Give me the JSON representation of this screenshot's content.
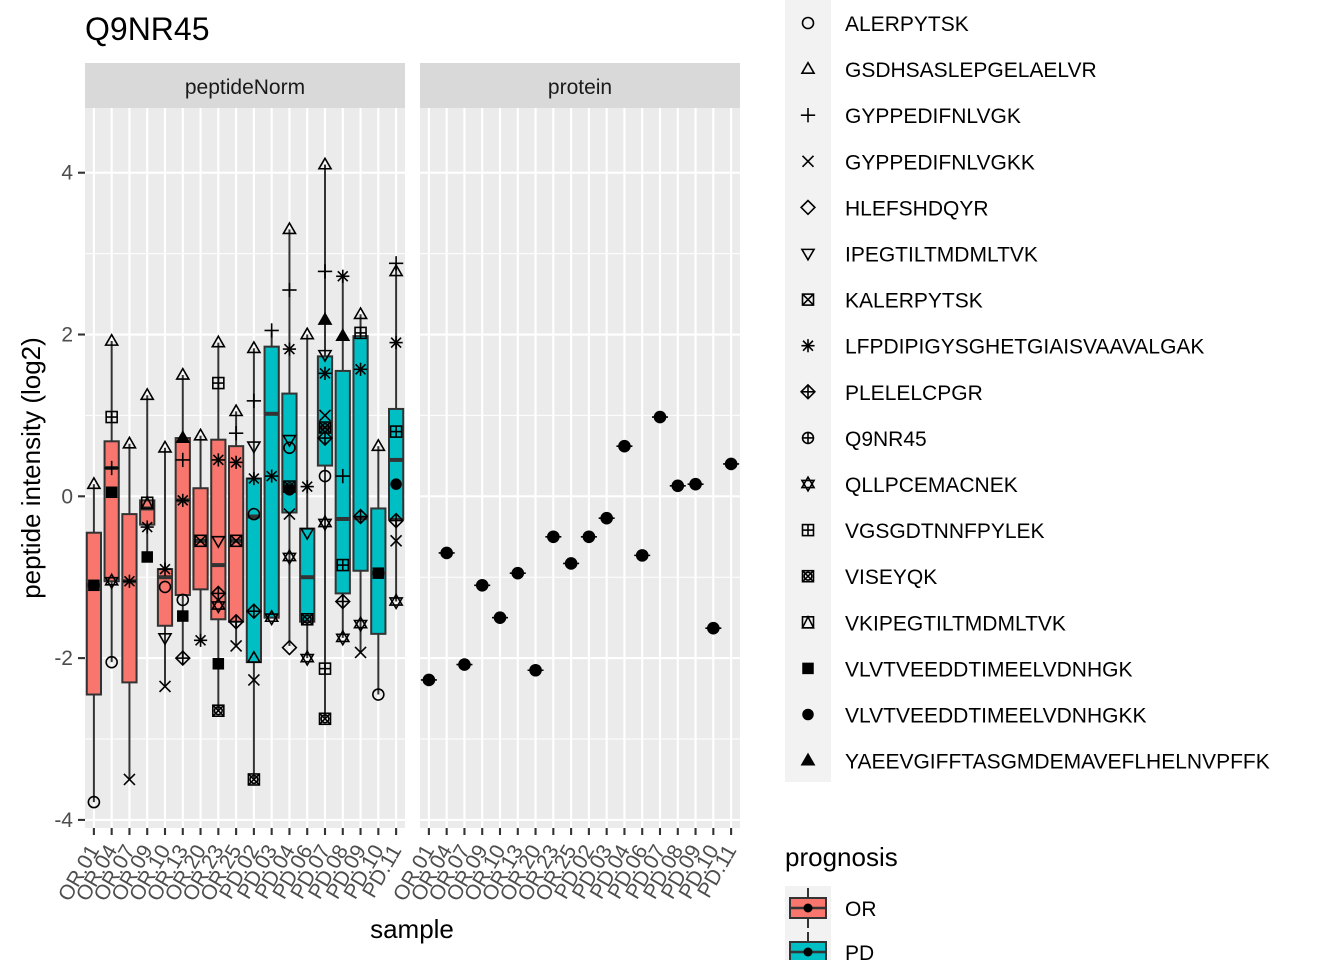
{
  "chart_data": {
    "type": "box",
    "title": "Q9NR45",
    "xlabel": "sample",
    "ylabel": "peptide intensity (log2)",
    "ylim": [
      -4.1,
      4.8
    ],
    "yticks": [
      -4,
      -2,
      0,
      2,
      4
    ],
    "ytick_labels": [
      "-4",
      "-2",
      "0",
      "2",
      "4"
    ],
    "samples": [
      "OR.01",
      "OR.04",
      "OR.07",
      "OR.09",
      "OR.10",
      "OR.13",
      "OR.20",
      "OR.23",
      "OR.25",
      "PD.02",
      "PD.03",
      "PD.04",
      "PD.06",
      "PD.07",
      "PD.08",
      "PD.09",
      "PD.10",
      "PD.11"
    ],
    "sample_group": [
      "OR",
      "OR",
      "OR",
      "OR",
      "OR",
      "OR",
      "OR",
      "OR",
      "OR",
      "PD",
      "PD",
      "PD",
      "PD",
      "PD",
      "PD",
      "PD",
      "PD",
      "PD"
    ],
    "facets": [
      "peptideNorm",
      "protein"
    ],
    "legend_fill": {
      "title": "prognosis",
      "entries": [
        {
          "name": "OR",
          "color": "#F8766D"
        },
        {
          "name": "PD",
          "color": "#00BFC4"
        }
      ]
    },
    "legend_shape": {
      "entries": [
        {
          "name": "ALERPYTSK",
          "shape": "circle"
        },
        {
          "name": "GSDHSASLEPGELAELVR",
          "shape": "triangle"
        },
        {
          "name": "GYPPEDIFNLVGK",
          "shape": "plus"
        },
        {
          "name": "GYPPEDIFNLVGKK",
          "shape": "cross"
        },
        {
          "name": "HLEFSHDQYR",
          "shape": "diamond"
        },
        {
          "name": "IPEGTILTMDMLTVK",
          "shape": "triangle-down"
        },
        {
          "name": "KALERPYTSK",
          "shape": "square-cross"
        },
        {
          "name": "LFPDIPIGYSGHETGIAISVAAVALGAK",
          "shape": "asterisk"
        },
        {
          "name": "PLELELCPGR",
          "shape": "diamond-plus"
        },
        {
          "name": "Q9NR45",
          "shape": "circle-plus"
        },
        {
          "name": "QLLPCEMACNEK",
          "shape": "star-of-david"
        },
        {
          "name": "VGSGDTNNFPYLEK",
          "shape": "square-plus"
        },
        {
          "name": "VISEYQK",
          "shape": "circle-cross"
        },
        {
          "name": "VKIPEGTILTMDMLTVK",
          "shape": "square-triangle"
        },
        {
          "name": "VLVTVEEDDTIMEELVDNHGK",
          "shape": "square-filled"
        },
        {
          "name": "VLVTVEEDDTIMEELVDNHGKK",
          "shape": "circle-filled"
        },
        {
          "name": "YAEEVGIFFTASGMDEMAVEFLHELNVPFFK",
          "shape": "triangle-filled"
        }
      ]
    },
    "peptideNorm_boxes": [
      {
        "sample": "OR.01",
        "q1": -2.45,
        "median": -1.1,
        "q3": -0.45,
        "lo": -3.78,
        "hi": 0.15
      },
      {
        "sample": "OR.04",
        "q1": -1.05,
        "median": 0.35,
        "q3": 0.68,
        "lo": -2.05,
        "hi": 1.92
      },
      {
        "sample": "OR.07",
        "q1": -2.3,
        "median": -1.05,
        "q3": -0.22,
        "lo": -3.5,
        "hi": 0.65
      },
      {
        "sample": "OR.09",
        "q1": -0.35,
        "median": -0.15,
        "q3": -0.05,
        "lo": -0.75,
        "hi": 1.25
      },
      {
        "sample": "OR.10",
        "q1": -1.6,
        "median": -1.0,
        "q3": -0.9,
        "lo": -2.35,
        "hi": 0.6
      },
      {
        "sample": "OR.13",
        "q1": -1.22,
        "median": -0.05,
        "q3": 0.72,
        "lo": -2.0,
        "hi": 1.5
      },
      {
        "sample": "OR.20",
        "q1": -1.15,
        "median": -0.55,
        "q3": 0.1,
        "lo": -1.78,
        "hi": 0.75
      },
      {
        "sample": "OR.23",
        "q1": -1.52,
        "median": -0.85,
        "q3": 0.7,
        "lo": -2.65,
        "hi": 1.9
      },
      {
        "sample": "OR.25",
        "q1": -1.55,
        "median": -0.55,
        "q3": 0.62,
        "lo": -1.85,
        "hi": 1.05
      },
      {
        "sample": "PD.02",
        "q1": -2.05,
        "median": -0.25,
        "q3": 0.22,
        "lo": -3.5,
        "hi": 1.83
      },
      {
        "sample": "PD.03",
        "q1": -1.5,
        "median": 1.02,
        "q3": 1.85,
        "lo": -1.5,
        "hi": 2.05
      },
      {
        "sample": "PD.04",
        "q1": -0.2,
        "median": 0.12,
        "q3": 1.27,
        "lo": -1.85,
        "hi": 3.3
      },
      {
        "sample": "PD.06",
        "q1": -1.55,
        "median": -1.0,
        "q3": -0.4,
        "lo": -2.0,
        "hi": 2.0
      },
      {
        "sample": "PD.07",
        "q1": 0.38,
        "median": 0.85,
        "q3": 1.73,
        "lo": -2.75,
        "hi": 4.1
      },
      {
        "sample": "PD.08",
        "q1": -1.2,
        "median": -0.28,
        "q3": 1.55,
        "lo": -1.75,
        "hi": 2.72
      },
      {
        "sample": "PD.09",
        "q1": -0.92,
        "median": -0.27,
        "q3": 1.98,
        "lo": -1.92,
        "hi": 2.25
      },
      {
        "sample": "PD.10",
        "q1": -1.7,
        "median": -0.95,
        "q3": -0.15,
        "lo": -2.45,
        "hi": 0.62
      },
      {
        "sample": "PD.11",
        "q1": -0.28,
        "median": 0.45,
        "q3": 1.08,
        "lo": -1.3,
        "hi": 2.88
      }
    ],
    "peptideNorm_points": [
      {
        "sample": "OR.01",
        "peptide": "ALERPYTSK",
        "y": -3.78
      },
      {
        "sample": "OR.01",
        "peptide": "GSDHSASLEPGELAELVR",
        "y": 0.15
      },
      {
        "sample": "OR.01",
        "peptide": "VLVTVEEDDTIMEELVDNHGK",
        "y": -1.1
      },
      {
        "sample": "OR.04",
        "peptide": "GSDHSASLEPGELAELVR",
        "y": 1.92
      },
      {
        "sample": "OR.04",
        "peptide": "VGSGDTNNFPYLEK",
        "y": 0.98
      },
      {
        "sample": "OR.04",
        "peptide": "GYPPEDIFNLVGK",
        "y": 0.35
      },
      {
        "sample": "OR.04",
        "peptide": "VLVTVEEDDTIMEELVDNHGK",
        "y": 0.05
      },
      {
        "sample": "OR.04",
        "peptide": "QLLPCEMACNEK",
        "y": -1.05
      },
      {
        "sample": "OR.04",
        "peptide": "ALERPYTSK",
        "y": -2.05
      },
      {
        "sample": "OR.07",
        "peptide": "GSDHSASLEPGELAELVR",
        "y": 0.65
      },
      {
        "sample": "OR.07",
        "peptide": "LFPDIPIGYSGHETGIAISVAAVALGAK",
        "y": -1.05
      },
      {
        "sample": "OR.07",
        "peptide": "GYPPEDIFNLVGKK",
        "y": -3.5
      },
      {
        "sample": "OR.09",
        "peptide": "GSDHSASLEPGELAELVR",
        "y": 1.25
      },
      {
        "sample": "OR.09",
        "peptide": "VKIPEGTILTMDMLTVK",
        "y": -0.08
      },
      {
        "sample": "OR.09",
        "peptide": "LFPDIPIGYSGHETGIAISVAAVALGAK",
        "y": -0.38
      },
      {
        "sample": "OR.09",
        "peptide": "VLVTVEEDDTIMEELVDNHGK",
        "y": -0.75
      },
      {
        "sample": "OR.10",
        "peptide": "GSDHSASLEPGELAELVR",
        "y": 0.6
      },
      {
        "sample": "OR.10",
        "peptide": "LFPDIPIGYSGHETGIAISVAAVALGAK",
        "y": -0.9
      },
      {
        "sample": "OR.10",
        "peptide": "ALERPYTSK",
        "y": -1.12
      },
      {
        "sample": "OR.10",
        "peptide": "IPEGTILTMDMLTVK",
        "y": -1.75
      },
      {
        "sample": "OR.10",
        "peptide": "GYPPEDIFNLVGKK",
        "y": -2.35
      },
      {
        "sample": "OR.13",
        "peptide": "GSDHSASLEPGELAELVR",
        "y": 1.5
      },
      {
        "sample": "OR.13",
        "peptide": "YAEEVGIFFTASGMDEMAVEFLHELNVPFFK",
        "y": 0.72
      },
      {
        "sample": "OR.13",
        "peptide": "GYPPEDIFNLVGK",
        "y": 0.45
      },
      {
        "sample": "OR.13",
        "peptide": "LFPDIPIGYSGHETGIAISVAAVALGAK",
        "y": -0.05
      },
      {
        "sample": "OR.13",
        "peptide": "ALERPYTSK",
        "y": -1.28
      },
      {
        "sample": "OR.13",
        "peptide": "VLVTVEEDDTIMEELVDNHGK",
        "y": -1.48
      },
      {
        "sample": "OR.13",
        "peptide": "PLELELCPGR",
        "y": -2.0
      },
      {
        "sample": "OR.20",
        "peptide": "GSDHSASLEPGELAELVR",
        "y": 0.75
      },
      {
        "sample": "OR.20",
        "peptide": "KALERPYTSK",
        "y": -0.55
      },
      {
        "sample": "OR.20",
        "peptide": "LFPDIPIGYSGHETGIAISVAAVALGAK",
        "y": -1.78
      },
      {
        "sample": "OR.23",
        "peptide": "GSDHSASLEPGELAELVR",
        "y": 1.9
      },
      {
        "sample": "OR.23",
        "peptide": "VGSGDTNNFPYLEK",
        "y": 1.4
      },
      {
        "sample": "OR.23",
        "peptide": "LFPDIPIGYSGHETGIAISVAAVALGAK",
        "y": 0.45
      },
      {
        "sample": "OR.23",
        "peptide": "IPEGTILTMDMLTVK",
        "y": -0.55
      },
      {
        "sample": "OR.23",
        "peptide": "PLELELCPGR",
        "y": -1.2
      },
      {
        "sample": "OR.23",
        "peptide": "QLLPCEMACNEK",
        "y": -1.35
      },
      {
        "sample": "OR.23",
        "peptide": "VLVTVEEDDTIMEELVDNHGK",
        "y": -2.07
      },
      {
        "sample": "OR.23",
        "peptide": "VISEYQK",
        "y": -2.65
      },
      {
        "sample": "OR.25",
        "peptide": "GSDHSASLEPGELAELVR",
        "y": 1.05
      },
      {
        "sample": "OR.25",
        "peptide": "GYPPEDIFNLVGK",
        "y": 0.78
      },
      {
        "sample": "OR.25",
        "peptide": "LFPDIPIGYSGHETGIAISVAAVALGAK",
        "y": 0.42
      },
      {
        "sample": "OR.25",
        "peptide": "KALERPYTSK",
        "y": -0.55
      },
      {
        "sample": "OR.25",
        "peptide": "PLELELCPGR",
        "y": -1.55
      },
      {
        "sample": "OR.25",
        "peptide": "GYPPEDIFNLVGKK",
        "y": -1.85
      },
      {
        "sample": "PD.02",
        "peptide": "GSDHSASLEPGELAELVR",
        "y": 1.83
      },
      {
        "sample": "PD.02",
        "peptide": "GYPPEDIFNLVGK",
        "y": 1.18
      },
      {
        "sample": "PD.02",
        "peptide": "IPEGTILTMDMLTVK",
        "y": 0.62
      },
      {
        "sample": "PD.02",
        "peptide": "LFPDIPIGYSGHETGIAISVAAVALGAK",
        "y": 0.22
      },
      {
        "sample": "PD.02",
        "peptide": "ALERPYTSK",
        "y": -0.22
      },
      {
        "sample": "PD.02",
        "peptide": "PLELELCPGR",
        "y": -1.42
      },
      {
        "sample": "PD.02",
        "peptide": "GSDHSASLEPGELAELVR",
        "y": -2.0
      },
      {
        "sample": "PD.02",
        "peptide": "GYPPEDIFNLVGKK",
        "y": -2.27
      },
      {
        "sample": "PD.02",
        "peptide": "VISEYQK",
        "y": -3.5
      },
      {
        "sample": "PD.03",
        "peptide": "GYPPEDIFNLVGK",
        "y": 2.05
      },
      {
        "sample": "PD.03",
        "peptide": "LFPDIPIGYSGHETGIAISVAAVALGAK",
        "y": 0.25
      },
      {
        "sample": "PD.03",
        "peptide": "QLLPCEMACNEK",
        "y": -1.5
      },
      {
        "sample": "PD.04",
        "peptide": "GSDHSASLEPGELAELVR",
        "y": 3.3
      },
      {
        "sample": "PD.04",
        "peptide": "GYPPEDIFNLVGK",
        "y": 2.55
      },
      {
        "sample": "PD.04",
        "peptide": "LFPDIPIGYSGHETGIAISVAAVALGAK",
        "y": 1.82
      },
      {
        "sample": "PD.04",
        "peptide": "IPEGTILTMDMLTVK",
        "y": 0.7
      },
      {
        "sample": "PD.04",
        "peptide": "ALERPYTSK",
        "y": 0.6
      },
      {
        "sample": "PD.04",
        "peptide": "VISEYQK",
        "y": 0.12
      },
      {
        "sample": "PD.04",
        "peptide": "VLVTVEEDDTIMEELVDNHGKK",
        "y": 0.08
      },
      {
        "sample": "PD.04",
        "peptide": "GYPPEDIFNLVGKK",
        "y": -0.22
      },
      {
        "sample": "PD.04",
        "peptide": "QLLPCEMACNEK",
        "y": -0.75
      },
      {
        "sample": "PD.04",
        "peptide": "HLEFSHDQYR",
        "y": -1.87
      },
      {
        "sample": "PD.06",
        "peptide": "GSDHSASLEPGELAELVR",
        "y": 2.0
      },
      {
        "sample": "PD.06",
        "peptide": "LFPDIPIGYSGHETGIAISVAAVALGAK",
        "y": 0.12
      },
      {
        "sample": "PD.06",
        "peptide": "IPEGTILTMDMLTVK",
        "y": -0.45
      },
      {
        "sample": "PD.06",
        "peptide": "VISEYQK",
        "y": -1.52
      },
      {
        "sample": "PD.06",
        "peptide": "QLLPCEMACNEK",
        "y": -2.0
      },
      {
        "sample": "PD.07",
        "peptide": "GSDHSASLEPGELAELVR",
        "y": 4.1
      },
      {
        "sample": "PD.07",
        "peptide": "GYPPEDIFNLVGK",
        "y": 2.78
      },
      {
        "sample": "PD.07",
        "peptide": "YAEEVGIFFTASGMDEMAVEFLHELNVPFFK",
        "y": 2.18
      },
      {
        "sample": "PD.07",
        "peptide": "IPEGTILTMDMLTVK",
        "y": 1.75
      },
      {
        "sample": "PD.07",
        "peptide": "LFPDIPIGYSGHETGIAISVAAVALGAK",
        "y": 1.52
      },
      {
        "sample": "PD.07",
        "peptide": "GYPPEDIFNLVGKK",
        "y": 1.0
      },
      {
        "sample": "PD.07",
        "peptide": "VISEYQK",
        "y": 0.85
      },
      {
        "sample": "PD.07",
        "peptide": "PLELELCPGR",
        "y": 0.72
      },
      {
        "sample": "PD.07",
        "peptide": "ALERPYTSK",
        "y": 0.25
      },
      {
        "sample": "PD.07",
        "peptide": "QLLPCEMACNEK",
        "y": -0.33
      },
      {
        "sample": "PD.07",
        "peptide": "VGSGDTNNFPYLEK",
        "y": -2.13
      },
      {
        "sample": "PD.07",
        "peptide": "VISEYQK",
        "y": -2.75
      },
      {
        "sample": "PD.08",
        "peptide": "LFPDIPIGYSGHETGIAISVAAVALGAK",
        "y": 2.72
      },
      {
        "sample": "PD.08",
        "peptide": "YAEEVGIFFTASGMDEMAVEFLHELNVPFFK",
        "y": 1.98
      },
      {
        "sample": "PD.08",
        "peptide": "GYPPEDIFNLVGK",
        "y": 0.25
      },
      {
        "sample": "PD.08",
        "peptide": "VGSGDTNNFPYLEK",
        "y": -0.85
      },
      {
        "sample": "PD.08",
        "peptide": "PLELELCPGR",
        "y": -1.3
      },
      {
        "sample": "PD.08",
        "peptide": "QLLPCEMACNEK",
        "y": -1.75
      },
      {
        "sample": "PD.09",
        "peptide": "GSDHSASLEPGELAELVR",
        "y": 2.25
      },
      {
        "sample": "PD.09",
        "peptide": "VGSGDTNNFPYLEK",
        "y": 2.02
      },
      {
        "sample": "PD.09",
        "peptide": "LFPDIPIGYSGHETGIAISVAAVALGAK",
        "y": 1.57
      },
      {
        "sample": "PD.09",
        "peptide": "PLELELCPGR",
        "y": -0.25
      },
      {
        "sample": "PD.09",
        "peptide": "QLLPCEMACNEK",
        "y": -1.58
      },
      {
        "sample": "PD.09",
        "peptide": "GYPPEDIFNLVGKK",
        "y": -1.93
      },
      {
        "sample": "PD.10",
        "peptide": "GSDHSASLEPGELAELVR",
        "y": 0.62
      },
      {
        "sample": "PD.10",
        "peptide": "VLVTVEEDDTIMEELVDNHGK",
        "y": -0.95
      },
      {
        "sample": "PD.10",
        "peptide": "ALERPYTSK",
        "y": -2.45
      },
      {
        "sample": "PD.11",
        "peptide": "GYPPEDIFNLVGK",
        "y": 2.88
      },
      {
        "sample": "PD.11",
        "peptide": "GSDHSASLEPGELAELVR",
        "y": 2.78
      },
      {
        "sample": "PD.11",
        "peptide": "LFPDIPIGYSGHETGIAISVAAVALGAK",
        "y": 1.9
      },
      {
        "sample": "PD.11",
        "peptide": "VGSGDTNNFPYLEK",
        "y": 0.8
      },
      {
        "sample": "PD.11",
        "peptide": "VLVTVEEDDTIMEELVDNHGKK",
        "y": 0.15
      },
      {
        "sample": "PD.11",
        "peptide": "PLELELCPGR",
        "y": -0.3
      },
      {
        "sample": "PD.11",
        "peptide": "GYPPEDIFNLVGKK",
        "y": -0.55
      },
      {
        "sample": "PD.11",
        "peptide": "QLLPCEMACNEK",
        "y": -1.3
      }
    ],
    "protein_points": [
      {
        "sample": "OR.01",
        "peptide": "Q9NR45",
        "y": -2.27
      },
      {
        "sample": "OR.04",
        "peptide": "Q9NR45",
        "y": -0.7
      },
      {
        "sample": "OR.07",
        "peptide": "Q9NR45",
        "y": -2.08
      },
      {
        "sample": "OR.09",
        "peptide": "Q9NR45",
        "y": -1.1
      },
      {
        "sample": "OR.10",
        "peptide": "Q9NR45",
        "y": -1.5
      },
      {
        "sample": "OR.13",
        "peptide": "Q9NR45",
        "y": -0.95
      },
      {
        "sample": "OR.20",
        "peptide": "Q9NR45",
        "y": -2.15
      },
      {
        "sample": "OR.23",
        "peptide": "Q9NR45",
        "y": -0.5
      },
      {
        "sample": "OR.25",
        "peptide": "Q9NR45",
        "y": -0.83
      },
      {
        "sample": "PD.02",
        "peptide": "Q9NR45",
        "y": -0.5
      },
      {
        "sample": "PD.03",
        "peptide": "Q9NR45",
        "y": -0.27
      },
      {
        "sample": "PD.04",
        "peptide": "Q9NR45",
        "y": 0.62
      },
      {
        "sample": "PD.06",
        "peptide": "Q9NR45",
        "y": -0.73
      },
      {
        "sample": "PD.07",
        "peptide": "Q9NR45",
        "y": 0.98
      },
      {
        "sample": "PD.08",
        "peptide": "Q9NR45",
        "y": 0.13
      },
      {
        "sample": "PD.09",
        "peptide": "Q9NR45",
        "y": 0.15
      },
      {
        "sample": "PD.10",
        "peptide": "Q9NR45",
        "y": -1.63
      },
      {
        "sample": "PD.11",
        "peptide": "Q9NR45",
        "y": 0.4
      }
    ]
  }
}
